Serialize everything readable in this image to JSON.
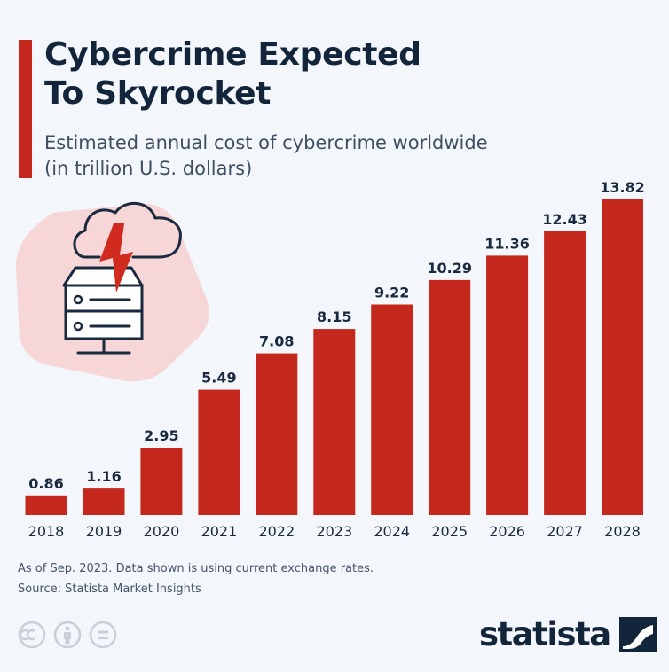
{
  "header": {
    "title_line1": "Cybercrime Expected",
    "title_line2": "To Skyrocket",
    "subtitle_line1": "Estimated annual cost of cybercrime worldwide",
    "subtitle_line2": "(in trillion U.S. dollars)"
  },
  "chart_data": {
    "type": "bar",
    "title": "Cybercrime Expected To Skyrocket",
    "subtitle": "Estimated annual cost of cybercrime worldwide (in trillion U.S. dollars)",
    "categories": [
      "2018",
      "2019",
      "2020",
      "2021",
      "2022",
      "2023",
      "2024",
      "2025",
      "2026",
      "2027",
      "2028"
    ],
    "values": [
      0.86,
      1.16,
      2.95,
      5.49,
      7.08,
      8.15,
      9.22,
      10.29,
      11.36,
      12.43,
      13.82
    ],
    "value_labels": [
      "0.86",
      "1.16",
      "2.95",
      "5.49",
      "7.08",
      "8.15",
      "9.22",
      "10.29",
      "11.36",
      "12.43",
      "13.82"
    ],
    "ylim": [
      0,
      13.82
    ],
    "grid": false,
    "bar_color": "#c4281c"
  },
  "footer": {
    "note": "As of Sep. 2023. Data shown is using current exchange rates.",
    "source": "Source: Statista Market Insights",
    "brand": "statista"
  },
  "colors": {
    "accent": "#c4281c",
    "text_dark": "#13253a",
    "background": "#f3f6fa"
  },
  "icons": [
    "cloud-server-lightning-icon",
    "cc-license-icon",
    "attribution-icon",
    "no-derivatives-icon",
    "statista-logo-icon"
  ]
}
